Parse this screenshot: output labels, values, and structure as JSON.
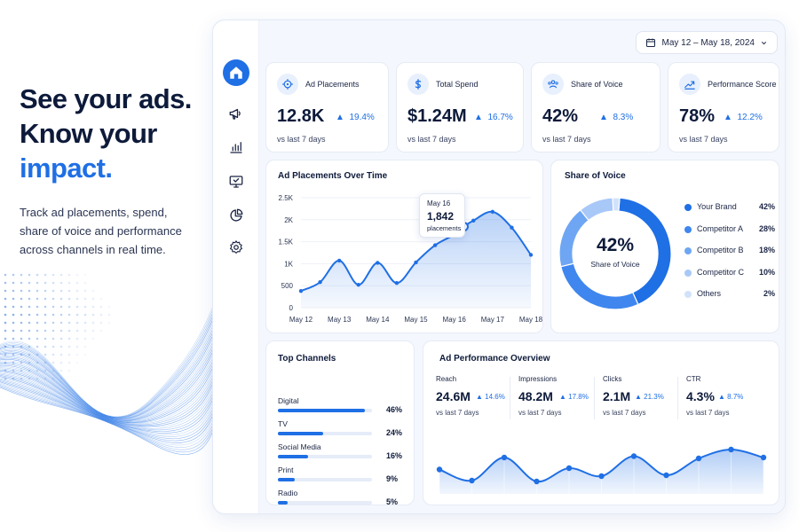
{
  "hero": {
    "line1": "See your ads.",
    "line2": "Know your",
    "line3": "impact.",
    "description": "Track ad placements, spend, share of voice and performance across channels in real time."
  },
  "sidebar": {
    "items": [
      {
        "name": "home",
        "icon": "home-icon",
        "active": true
      },
      {
        "name": "campaigns",
        "icon": "megaphone-icon",
        "active": false
      },
      {
        "name": "analytics",
        "icon": "bar-chart-icon",
        "active": false
      },
      {
        "name": "placements",
        "icon": "monitor-icon",
        "active": false
      },
      {
        "name": "reports",
        "icon": "pie-chart-icon",
        "active": false
      },
      {
        "name": "settings",
        "icon": "gear-icon",
        "active": false
      }
    ]
  },
  "header": {
    "date_range": "May 12 – May 18, 2024"
  },
  "kpis": [
    {
      "label": "Ad Placements",
      "value": "12.8K",
      "change": "19.4%",
      "sub": "vs last 7 days",
      "icon": "target-icon"
    },
    {
      "label": "Total Spend",
      "value": "$1.24M",
      "change": "16.7%",
      "sub": "vs last 7 days",
      "icon": "dollar-icon"
    },
    {
      "label": "Share of Voice",
      "value": "42%",
      "change": "8.3%",
      "sub": "vs last 7 days",
      "icon": "people-icon"
    },
    {
      "label": "Performance Score",
      "value": "78%",
      "change": "12.2%",
      "sub": "vs last 7 days",
      "icon": "trend-icon"
    }
  ],
  "placements_chart": {
    "title": "Ad Placements Over Time",
    "tooltip": {
      "date": "May 16",
      "value": "1,842",
      "unit": "placements"
    }
  },
  "chart_data": [
    {
      "type": "area",
      "title": "Ad Placements Over Time",
      "categories": [
        "May 12",
        "May 13",
        "May 14",
        "May 15",
        "May 16",
        "May 17",
        "May 18"
      ],
      "y_ticks": [
        "0",
        "500",
        "1K",
        "1.5K",
        "2K",
        "2.5K"
      ],
      "ylim": [
        0,
        2500
      ],
      "x": [
        0,
        0.5,
        1,
        1.5,
        2,
        2.5,
        3,
        3.5,
        4,
        4.25,
        4.5,
        5,
        5.5,
        6
      ],
      "y": [
        380,
        580,
        1070,
        520,
        1020,
        560,
        1030,
        1420,
        1660,
        1842,
        1980,
        2180,
        1820,
        1200
      ],
      "highlight_index": 9,
      "grid": true
    },
    {
      "type": "pie",
      "title": "Share of Voice",
      "center_value": "42%",
      "center_label": "Share of Voice",
      "labels": [
        "Your Brand",
        "Competitor A",
        "Competitor B",
        "Competitor C",
        "Others"
      ],
      "values": [
        42,
        28,
        18,
        10,
        2
      ],
      "display_values": [
        "42%",
        "28%",
        "18%",
        "10%",
        "2%"
      ],
      "colors": [
        "#1f6fe5",
        "#3f86ef",
        "#6ea6f4",
        "#a8c8f8",
        "#d2e2fb"
      ]
    },
    {
      "type": "bar",
      "title": "Top Channels",
      "categories": [
        "Digital",
        "TV",
        "Social Media",
        "Print",
        "Radio"
      ],
      "values": [
        46,
        24,
        16,
        9,
        5
      ],
      "display_values": [
        "46%",
        "24%",
        "16%",
        "9%",
        "5%"
      ]
    },
    {
      "type": "area",
      "title": "Ad Performance Overview",
      "x": [
        0,
        1,
        2,
        3,
        4,
        5,
        6,
        7,
        8,
        9,
        10
      ],
      "y": [
        0.55,
        0.3,
        0.82,
        0.28,
        0.58,
        0.4,
        0.85,
        0.42,
        0.8,
        1.0,
        0.82
      ],
      "ylim": [
        0,
        1
      ]
    }
  ],
  "performance": {
    "title": "Ad Performance Overview",
    "metrics": [
      {
        "label": "Reach",
        "value": "24.6M",
        "change": "14.6%",
        "sub": "vs last 7 days"
      },
      {
        "label": "Impressions",
        "value": "48.2M",
        "change": "17.8%",
        "sub": "vs last 7 days"
      },
      {
        "label": "Clicks",
        "value": "2.1M",
        "change": "21.3%",
        "sub": "vs last 7 days"
      },
      {
        "label": "CTR",
        "value": "4.3%",
        "change": "8.7%",
        "sub": "vs last 7 days"
      }
    ]
  },
  "colors": {
    "accent": "#1f6fe5",
    "text_dark": "#0d1a3a",
    "panel_bg": "#f4f7fd"
  }
}
